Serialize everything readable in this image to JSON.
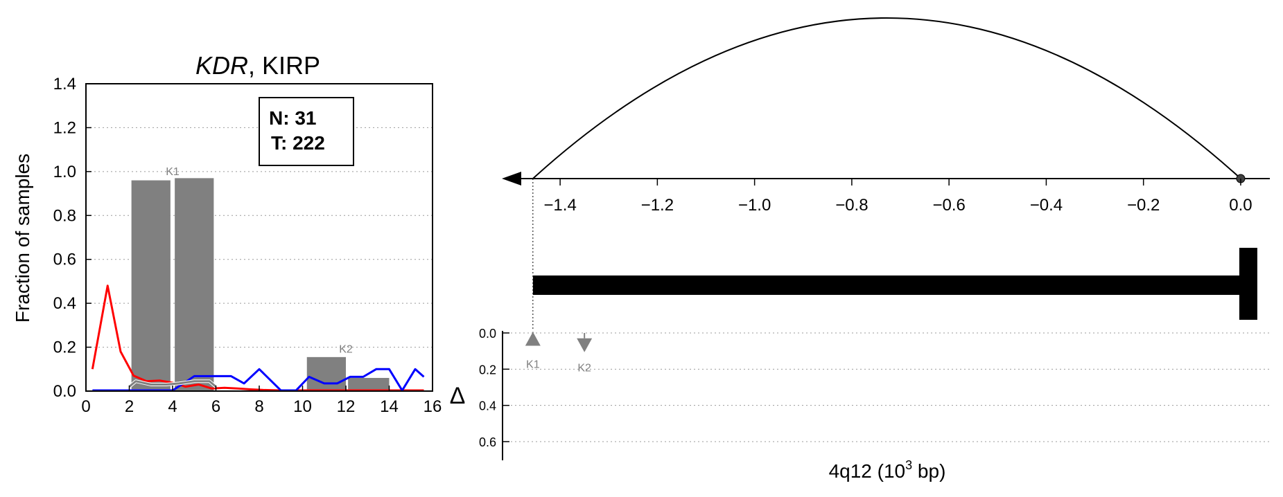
{
  "chart_data": [
    {
      "type": "bar",
      "title_gene": "KDR",
      "title_rest": ", KIRP",
      "ylabel": "Fraction of samples",
      "xlim": [
        0,
        16
      ],
      "ylim": [
        0,
        1.4
      ],
      "xticks": [
        0,
        2,
        4,
        6,
        8,
        10,
        12,
        14,
        16
      ],
      "yticks": [
        0.0,
        0.2,
        0.4,
        0.6,
        0.8,
        1.0,
        1.2,
        1.4
      ],
      "ytick_labels": [
        "0.0",
        "0.2",
        "0.4",
        "0.6",
        "0.8",
        "1.0",
        "1.2",
        "1.4"
      ],
      "grid": "horizontal-dotted",
      "info_box": {
        "n_label": "N: 31",
        "t_label": "T: 222"
      },
      "bars": [
        {
          "x0": 2.1,
          "x1": 3.9,
          "value": 0.96,
          "color": "#808080"
        },
        {
          "x0": 4.1,
          "x1": 5.9,
          "value": 0.97,
          "color": "#808080"
        },
        {
          "x0": 10.2,
          "x1": 12.0,
          "value": 0.155,
          "color": "#808080"
        },
        {
          "x0": 12.1,
          "x1": 14.0,
          "value": 0.06,
          "color": "#808080"
        }
      ],
      "bar_labels": [
        {
          "text": "K1",
          "x": 4.0,
          "y": 1.0
        },
        {
          "text": "K2",
          "x": 12.0,
          "y": 0.19
        }
      ],
      "series": [
        {
          "color": "#ff0000",
          "x": [
            0.3,
            1.0,
            1.6,
            2.2,
            2.8,
            3.4,
            4.0,
            4.6,
            5.2,
            5.8,
            6.4,
            7.0,
            7.6,
            8.2,
            9.0,
            10.0,
            11.0,
            12.0,
            13.0,
            14.0,
            15.0,
            15.6
          ],
          "y": [
            0.1,
            0.48,
            0.18,
            0.07,
            0.045,
            0.048,
            0.038,
            0.02,
            0.03,
            0.012,
            0.015,
            0.012,
            0.008,
            0.005,
            0.003,
            0.003,
            0.003,
            0.003,
            0.003,
            0.003,
            0.003,
            0.003
          ]
        },
        {
          "color": "#0000ff",
          "x": [
            0.3,
            1.0,
            2.0,
            3.0,
            4.0,
            4.5,
            5.0,
            6.0,
            6.7,
            7.3,
            8.0,
            9.0,
            9.7,
            10.3,
            11.0,
            11.6,
            12.2,
            12.8,
            13.4,
            14.0,
            14.6,
            15.2,
            15.6
          ],
          "y": [
            0.003,
            0.003,
            0.003,
            0.003,
            0.003,
            0.035,
            0.068,
            0.068,
            0.068,
            0.035,
            0.1,
            0.003,
            0.003,
            0.065,
            0.035,
            0.035,
            0.065,
            0.065,
            0.1,
            0.1,
            0.003,
            0.1,
            0.065
          ]
        },
        {
          "color": "#808080",
          "x": [
            2.0,
            2.3,
            3.0,
            3.7,
            4.3,
            5.0,
            5.7,
            6.0
          ],
          "y": [
            0.02,
            0.045,
            0.03,
            0.03,
            0.035,
            0.045,
            0.045,
            0.02
          ]
        }
      ]
    },
    {
      "type": "line",
      "xlabel": "4q12 (10",
      "xlabel_sup": "3",
      "xlabel_tail": " bp)",
      "xlim": [
        -1.48,
        0.04
      ],
      "xticks": [
        -1.4,
        -1.2,
        -1.0,
        -0.8,
        -0.6,
        -0.4,
        -0.2,
        0.0
      ],
      "xtick_labels": [
        "−1.4",
        "−1.2",
        "−1.0",
        "−0.8",
        "−0.6",
        "−0.4",
        "−0.2",
        "0.0"
      ],
      "arc": {
        "x_start": -1.456,
        "x_end": 0.0,
        "peak_height": 1.0
      },
      "gene_bar": {
        "x_start": -1.456,
        "x_end": 0.0,
        "strand": "minus"
      },
      "delta_axis": {
        "label": "Δ",
        "ylim": [
          0.0,
          0.7
        ],
        "yticks": [
          0.0,
          0.2,
          0.4,
          0.6
        ],
        "ytick_labels": [
          "0.0",
          "0.2",
          "0.4",
          "0.6"
        ]
      },
      "markers": [
        {
          "label": "K1",
          "x": -1.456,
          "delta": 0.04,
          "shape": "triangle-up"
        },
        {
          "label": "K2",
          "x": -1.35,
          "delta": 0.06,
          "shape": "triangle-down"
        }
      ]
    }
  ]
}
